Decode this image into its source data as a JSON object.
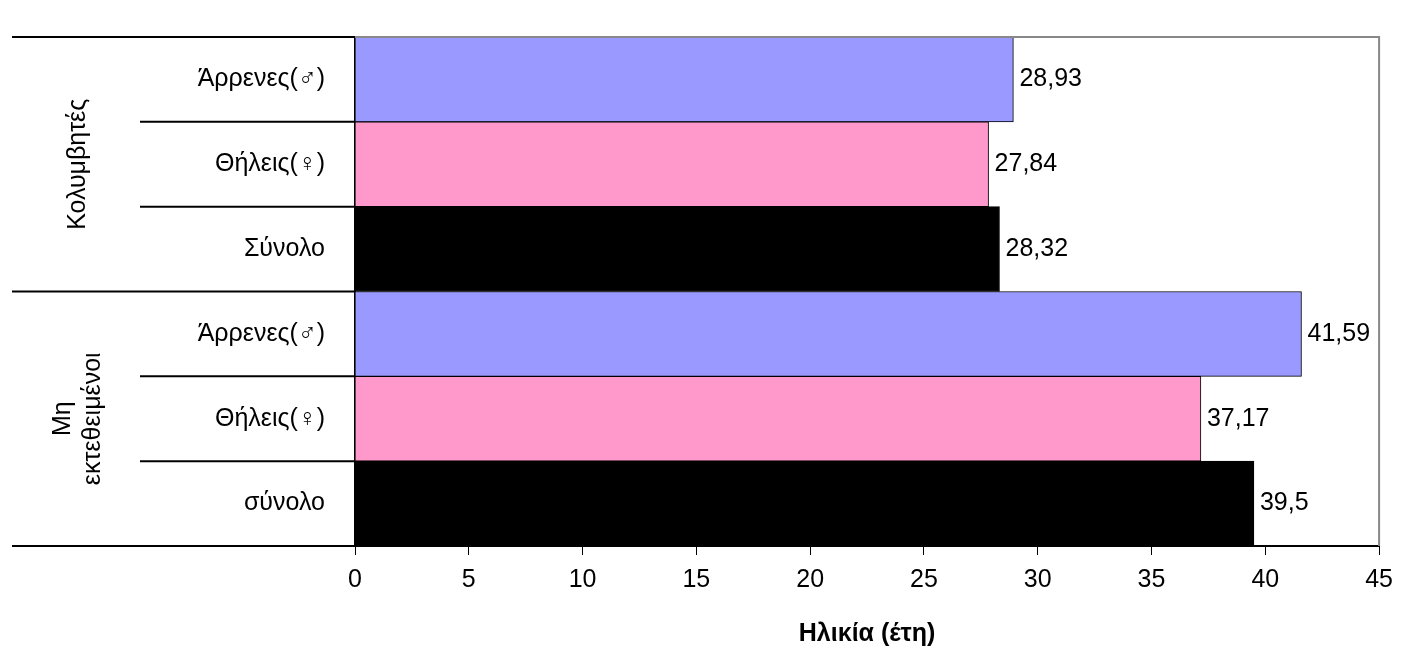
{
  "chart_data": {
    "type": "bar",
    "orientation": "horizontal",
    "xlabel": "Ηλικία (έτη)",
    "categories": [
      "Άρρενες(♂)",
      "Θήλεις(♀)",
      "Σύνολο",
      "Άρρενες(♂)",
      "Θήλεις(♀)",
      "σύνολο"
    ],
    "values": [
      28.93,
      27.84,
      28.32,
      41.59,
      37.17,
      39.5
    ],
    "colors": [
      "#9999ff",
      "#ff99cc",
      "#000000",
      "#9999ff",
      "#ff99cc",
      "#000000"
    ],
    "value_labels": [
      "28,93",
      "27,84",
      "28,32",
      "41,59",
      "37,17",
      "39,5"
    ],
    "annotations": [
      "Κολυμβητές",
      "Μη\nεκτεθειμένοι"
    ],
    "xlim": [
      0,
      45
    ],
    "xticks": [
      0,
      5,
      10,
      15,
      20,
      25,
      30,
      35,
      40,
      45
    ],
    "grid": false,
    "legend": false
  }
}
